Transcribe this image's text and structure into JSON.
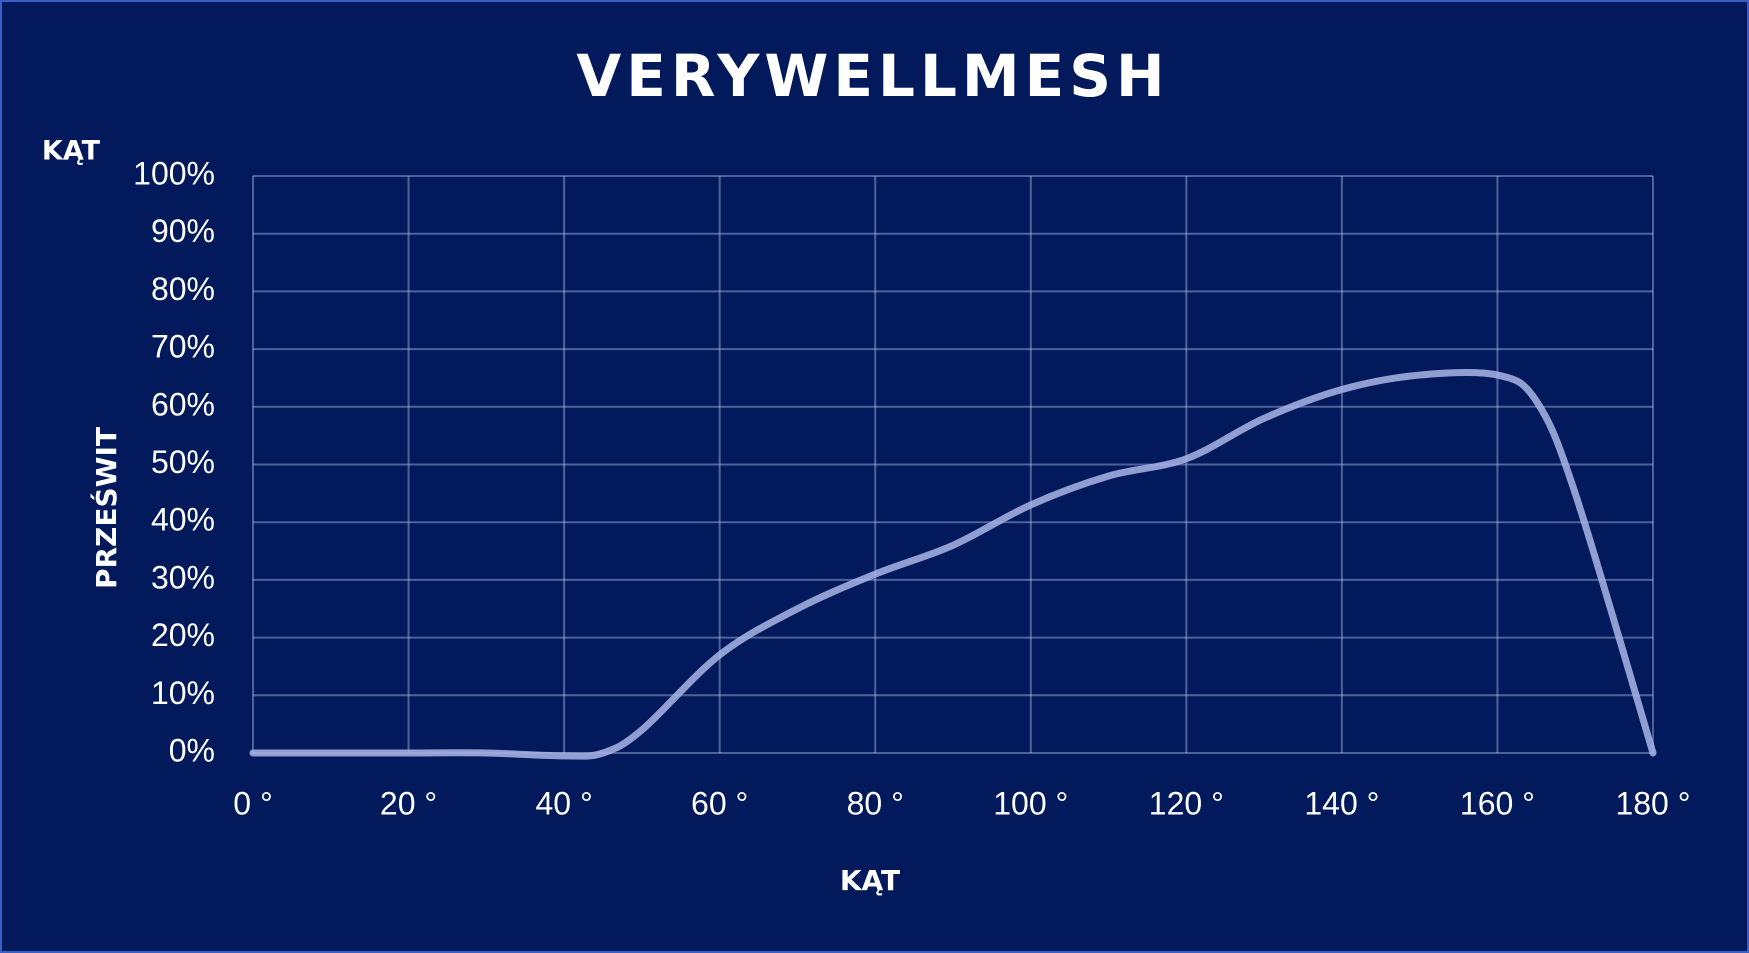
{
  "chart_data": {
    "type": "line",
    "title": "VERYWELLMESH",
    "corner_label": "KĄT",
    "x_label": "KĄT",
    "y_label": "PRZEŚWIT",
    "x": [
      0,
      10,
      20,
      30,
      40,
      45,
      50,
      60,
      70,
      80,
      90,
      100,
      110,
      120,
      130,
      140,
      150,
      160,
      165,
      170,
      180
    ],
    "series": [
      {
        "name": "Prześwit",
        "color": "#a9b6e6",
        "values": [
          0,
          0,
          0,
          0,
          -0.5,
          0,
          4,
          17,
          25,
          31,
          36,
          43,
          48,
          51,
          58,
          63,
          65.5,
          65.5,
          61,
          45,
          0
        ]
      }
    ],
    "xlim": [
      0,
      180
    ],
    "xticks": [
      {
        "value": 0,
        "label": "0 °"
      },
      {
        "value": 20,
        "label": "20 °"
      },
      {
        "value": 40,
        "label": "40 °"
      },
      {
        "value": 60,
        "label": "60 °"
      },
      {
        "value": 80,
        "label": "80 °"
      },
      {
        "value": 100,
        "label": "100 °"
      },
      {
        "value": 120,
        "label": "120 °"
      },
      {
        "value": 140,
        "label": "140 °"
      },
      {
        "value": 160,
        "label": "160 °"
      },
      {
        "value": 180,
        "label": "180 °"
      }
    ],
    "ylim": [
      0,
      100
    ],
    "yticks": [
      {
        "value": 0,
        "label": "0%"
      },
      {
        "value": 10,
        "label": "10%"
      },
      {
        "value": 20,
        "label": "20%"
      },
      {
        "value": 30,
        "label": "30%"
      },
      {
        "value": 40,
        "label": "40%"
      },
      {
        "value": 50,
        "label": "50%"
      },
      {
        "value": 60,
        "label": "60%"
      },
      {
        "value": 70,
        "label": "70%"
      },
      {
        "value": 80,
        "label": "80%"
      },
      {
        "value": 90,
        "label": "90%"
      },
      {
        "value": 100,
        "label": "100%"
      }
    ],
    "grid": true
  }
}
